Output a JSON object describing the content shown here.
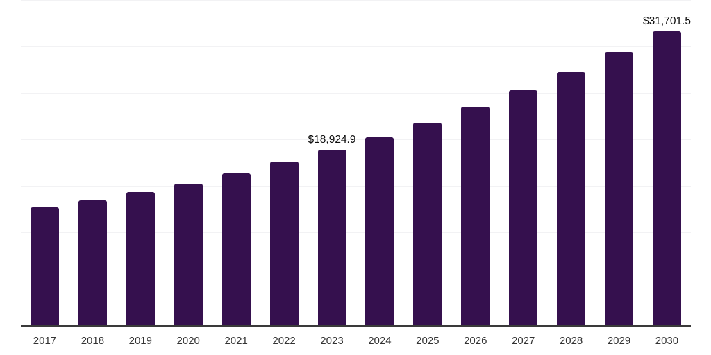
{
  "chart": {
    "background_color": "#ffffff",
    "bar_color": "#35104E",
    "gridline_color": "#f2f2f4",
    "axis_line_color": "#3a3a3a",
    "tick_label_color": "#333333",
    "data_label_color": "#0b0b0b"
  },
  "chart_data": {
    "type": "bar",
    "title": "",
    "xlabel": "",
    "ylabel": "",
    "categories": [
      "2017",
      "2018",
      "2019",
      "2020",
      "2021",
      "2022",
      "2023",
      "2024",
      "2025",
      "2026",
      "2027",
      "2028",
      "2029",
      "2030"
    ],
    "values": [
      12760,
      13510,
      14380,
      15320,
      16420,
      17670,
      18924.9,
      20330,
      21850,
      23560,
      25370,
      27330,
      29450,
      31701.5
    ],
    "point_labels": [
      "",
      "",
      "",
      "",
      "",
      "",
      "$18,924.9",
      "",
      "",
      "",
      "",
      "",
      "",
      "$31,701.5"
    ],
    "ylim": [
      0,
      35000
    ],
    "gridline_step": 5000,
    "grid": "horizontal-only",
    "y_axis_tick_labels_visible": false,
    "legend_position": "none"
  }
}
